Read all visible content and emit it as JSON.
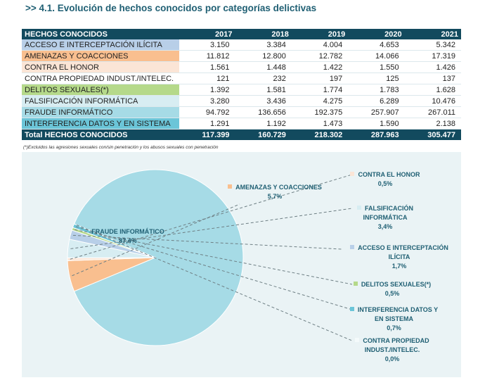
{
  "heading": ">> 4.1. Evolución de hechos conocidos por categorías delictivas",
  "table": {
    "header": [
      "HECHOS CONOCIDOS",
      "2017",
      "2018",
      "2019",
      "2020",
      "2021"
    ],
    "rows": [
      {
        "label": "ACCESO  E INTERCEPTACIÓN ILÍCITA",
        "color": "#b8cfe8",
        "values": [
          "3.150",
          "3.384",
          "4.004",
          "4.653",
          "5.342"
        ]
      },
      {
        "label": "AMENAZAS Y COACCIONES",
        "color": "#f9bf8f",
        "values": [
          "11.812",
          "12.800",
          "12.782",
          "14.066",
          "17.319"
        ]
      },
      {
        "label": "CONTRA EL HONOR",
        "color": "#fbe5d6",
        "values": [
          "1.561",
          "1.448",
          "1.422",
          "1.550",
          "1.426"
        ]
      },
      {
        "label": "CONTRA PROPIEDAD INDUST./INTELEC.",
        "color": "#ffffff",
        "values": [
          "121",
          "232",
          "197",
          "125",
          "137"
        ]
      },
      {
        "label": "DELITOS SEXUALES(*)",
        "color": "#b5d98a",
        "values": [
          "1.392",
          "1.581",
          "1.774",
          "1.783",
          "1.628"
        ]
      },
      {
        "label": "FALSIFICACIÓN INFORMÁTICA",
        "color": "#d7edf2",
        "values": [
          "3.280",
          "3.436",
          "4.275",
          "6.289",
          "10.476"
        ]
      },
      {
        "label": "FRAUDE INFORMÁTICO",
        "color": "#a6dbe6",
        "values": [
          "94.792",
          "136.656",
          "192.375",
          "257.907",
          "267.011"
        ]
      },
      {
        "label": "INTERFERENCIA DATOS Y EN SISTEMA",
        "color": "#6bc5d8",
        "values": [
          "1.291",
          "1.192",
          "1.473",
          "1.590",
          "2.138"
        ]
      }
    ],
    "total": {
      "label": "Total HECHOS CONOCIDOS",
      "values": [
        "117.399",
        "160.729",
        "218.302",
        "287.963",
        "305.477"
      ]
    }
  },
  "note": "(*)Excluidos las agresiones sexuales con/sin penetración y los abusos sexuales con penetración",
  "chart_data": {
    "type": "pie",
    "slices": [
      {
        "name": "FRAUDE INFORMÁTICO",
        "value": 87.4,
        "pct": "87,4%",
        "color": "#a6dbe6"
      },
      {
        "name": "AMENAZAS Y COACCIONES",
        "value": 5.7,
        "pct": "5,7%",
        "color": "#f9bf8f"
      },
      {
        "name": "CONTRA EL HONOR",
        "value": 0.5,
        "pct": "0,5%",
        "color": "#fbe5d6"
      },
      {
        "name": "FALSIFICACIÓN INFORMÁTICA",
        "value": 3.4,
        "pct": "3,4%",
        "color": "#d7edf2"
      },
      {
        "name": "ACCESO  E INTERCEPTACIÓN ILÍCITA",
        "value": 1.7,
        "pct": "1,7%",
        "color": "#b8cfe8"
      },
      {
        "name": "DELITOS SEXUALES(*)",
        "value": 0.5,
        "pct": "0,5%",
        "color": "#b5d98a"
      },
      {
        "name": "INTERFERENCIA DATOS Y EN SISTEMA",
        "value": 0.7,
        "pct": "0,7%",
        "color": "#6bc5d8"
      },
      {
        "name": "CONTRA PROPIEDAD INDUST./INTELEC.",
        "value": 0.0,
        "pct": "0,0%",
        "color": "#f4fafb"
      }
    ]
  }
}
